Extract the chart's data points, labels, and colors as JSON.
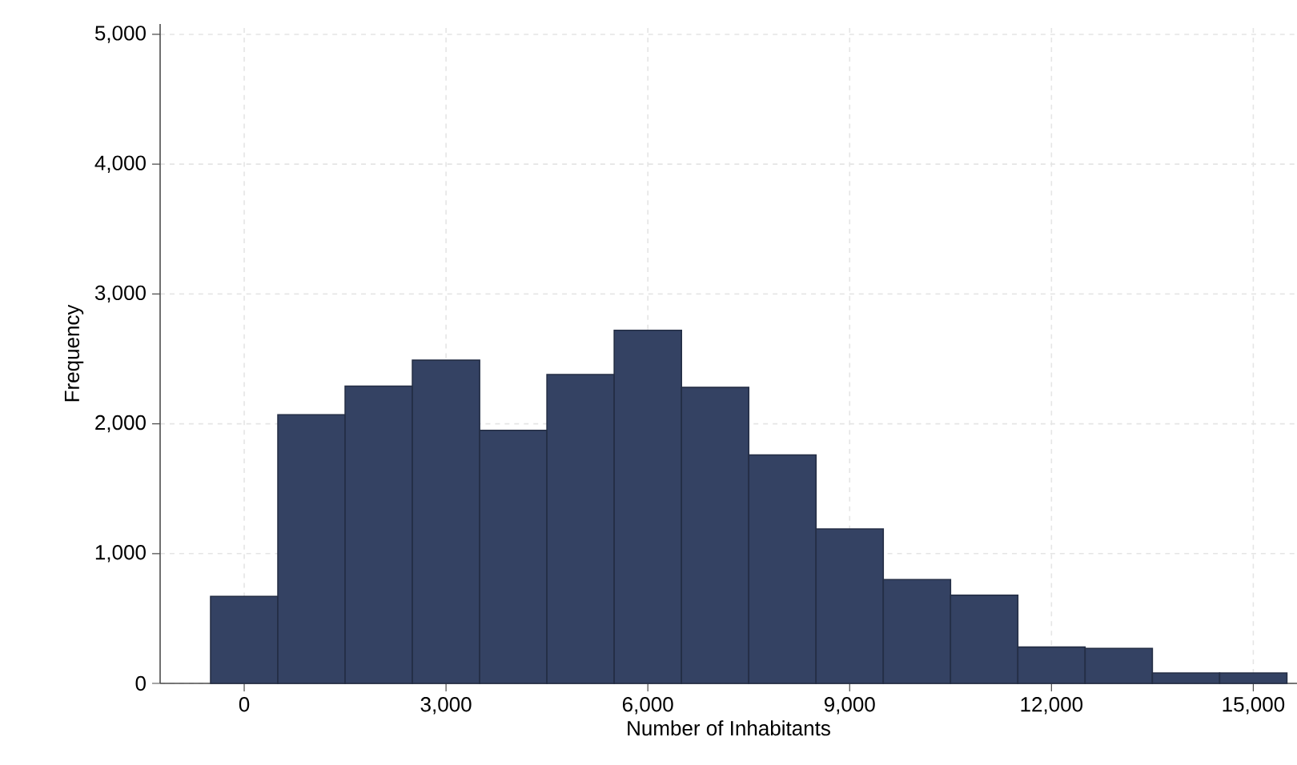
{
  "chart_data": {
    "type": "histogram",
    "xlabel": "Number of Inhabitants",
    "ylabel": "Frequency",
    "bins": [
      -500,
      500,
      1500,
      2500,
      3500,
      4500,
      5500,
      6500,
      7500,
      8500,
      9500,
      10500,
      11500,
      12500,
      13500,
      14500,
      15500
    ],
    "values": [
      670,
      2070,
      2290,
      2490,
      1950,
      2380,
      2720,
      2280,
      1760,
      1190,
      800,
      680,
      280,
      270,
      80,
      80
    ],
    "color": "#344263",
    "xlim": [
      -1250,
      15650
    ],
    "ylim": [
      0,
      5080
    ],
    "xticks": [
      {
        "value": 0,
        "label": "0"
      },
      {
        "value": 3000,
        "label": "3,000"
      },
      {
        "value": 6000,
        "label": "6,000"
      },
      {
        "value": 9000,
        "label": "9,000"
      },
      {
        "value": 12000,
        "label": "12,000"
      },
      {
        "value": 15000,
        "label": "15,000"
      }
    ],
    "yticks": [
      {
        "value": 0,
        "label": "0"
      },
      {
        "value": 1000,
        "label": "1,000"
      },
      {
        "value": 2000,
        "label": "2,000"
      },
      {
        "value": 3000,
        "label": "3,000"
      },
      {
        "value": 4000,
        "label": "4,000"
      },
      {
        "value": 5000,
        "label": "5,000"
      }
    ],
    "grid": true
  }
}
